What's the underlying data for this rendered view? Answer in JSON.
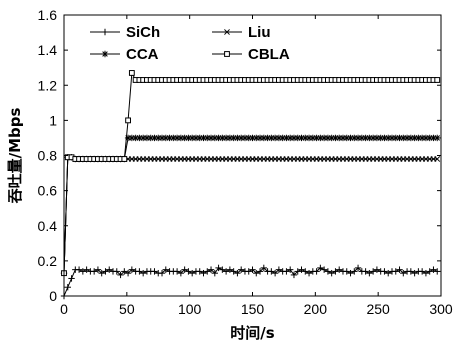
{
  "chart_data": {
    "type": "line",
    "xlabel": "时间/s",
    "ylabel": "吞吐量/Mbps",
    "xlim": [
      0,
      300
    ],
    "ylim": [
      0,
      1.6
    ],
    "xticks": [
      "0",
      "50",
      "100",
      "150",
      "200",
      "250",
      "300"
    ],
    "yticks": [
      "0",
      "0.2",
      "0.4",
      "0.6",
      "0.8",
      "1",
      "1.2",
      "1.4",
      "1.6"
    ],
    "grid": false,
    "legend": {
      "placement": "top-left",
      "columns": 2
    },
    "series": [
      {
        "name": "SiCh",
        "marker": "plus",
        "x": [
          0,
          3,
          6,
          9,
          12,
          15,
          18,
          21,
          24,
          27,
          30,
          33,
          36,
          39,
          42,
          45,
          48,
          51,
          54,
          57,
          60,
          63,
          66,
          69,
          72,
          75,
          78,
          81,
          84,
          87,
          90,
          93,
          96,
          99,
          102,
          105,
          108,
          111,
          114,
          117,
          120,
          123,
          126,
          129,
          132,
          135,
          138,
          141,
          144,
          147,
          150,
          153,
          156,
          159,
          162,
          165,
          168,
          171,
          174,
          177,
          180,
          183,
          186,
          189,
          192,
          195,
          198,
          201,
          204,
          207,
          210,
          213,
          216,
          219,
          222,
          225,
          228,
          231,
          234,
          237,
          240,
          243,
          246,
          249,
          252,
          255,
          258,
          261,
          264,
          267,
          270,
          273,
          276,
          279,
          282,
          285,
          288,
          291,
          294,
          297
        ],
        "y": [
          0.0,
          0.05,
          0.1,
          0.15,
          0.15,
          0.14,
          0.15,
          0.14,
          0.14,
          0.15,
          0.13,
          0.14,
          0.15,
          0.14,
          0.14,
          0.12,
          0.14,
          0.13,
          0.15,
          0.14,
          0.14,
          0.13,
          0.14,
          0.14,
          0.14,
          0.13,
          0.13,
          0.15,
          0.14,
          0.14,
          0.14,
          0.13,
          0.15,
          0.14,
          0.13,
          0.14,
          0.14,
          0.13,
          0.14,
          0.15,
          0.13,
          0.16,
          0.15,
          0.14,
          0.15,
          0.14,
          0.13,
          0.15,
          0.14,
          0.14,
          0.15,
          0.13,
          0.14,
          0.16,
          0.14,
          0.14,
          0.13,
          0.15,
          0.14,
          0.14,
          0.15,
          0.12,
          0.14,
          0.15,
          0.14,
          0.13,
          0.14,
          0.14,
          0.16,
          0.15,
          0.14,
          0.13,
          0.14,
          0.15,
          0.14,
          0.14,
          0.13,
          0.14,
          0.16,
          0.14,
          0.14,
          0.13,
          0.14,
          0.15,
          0.14,
          0.14,
          0.13,
          0.14,
          0.14,
          0.15,
          0.13,
          0.14,
          0.14,
          0.13,
          0.14,
          0.14,
          0.13,
          0.14,
          0.15,
          0.14
        ]
      },
      {
        "name": "Liu",
        "marker": "x",
        "x": [
          0,
          3,
          6,
          9,
          12,
          15,
          18,
          21,
          24,
          27,
          30,
          33,
          36,
          39,
          42,
          45,
          48,
          51,
          54,
          57,
          60,
          63,
          66,
          69,
          72,
          75,
          78,
          81,
          84,
          87,
          90,
          93,
          96,
          99,
          102,
          105,
          108,
          111,
          114,
          117,
          120,
          123,
          126,
          129,
          132,
          135,
          138,
          141,
          144,
          147,
          150,
          153,
          156,
          159,
          162,
          165,
          168,
          171,
          174,
          177,
          180,
          183,
          186,
          189,
          192,
          195,
          198,
          201,
          204,
          207,
          210,
          213,
          216,
          219,
          222,
          225,
          228,
          231,
          234,
          237,
          240,
          243,
          246,
          249,
          252,
          255,
          258,
          261,
          264,
          267,
          270,
          273,
          276,
          279,
          282,
          285,
          288,
          291,
          294,
          297
        ],
        "y": [
          0.13,
          0.79,
          0.79,
          0.78,
          0.78,
          0.78,
          0.78,
          0.78,
          0.78,
          0.78,
          0.78,
          0.78,
          0.78,
          0.78,
          0.78,
          0.78,
          0.78,
          0.78,
          0.78,
          0.78,
          0.78,
          0.78,
          0.78,
          0.78,
          0.78,
          0.78,
          0.78,
          0.78,
          0.78,
          0.78,
          0.78,
          0.78,
          0.78,
          0.78,
          0.78,
          0.78,
          0.78,
          0.78,
          0.78,
          0.78,
          0.78,
          0.78,
          0.78,
          0.78,
          0.78,
          0.78,
          0.78,
          0.78,
          0.78,
          0.78,
          0.78,
          0.78,
          0.78,
          0.78,
          0.78,
          0.78,
          0.78,
          0.78,
          0.78,
          0.78,
          0.78,
          0.78,
          0.78,
          0.78,
          0.78,
          0.78,
          0.78,
          0.78,
          0.78,
          0.78,
          0.78,
          0.78,
          0.78,
          0.78,
          0.78,
          0.78,
          0.78,
          0.78,
          0.78,
          0.78,
          0.78,
          0.78,
          0.78,
          0.78,
          0.78,
          0.78,
          0.78,
          0.78,
          0.78,
          0.78,
          0.78,
          0.78,
          0.78,
          0.78,
          0.78,
          0.78,
          0.78,
          0.78,
          0.78,
          0.78
        ]
      },
      {
        "name": "CCA",
        "marker": "asterisk",
        "x": [
          0,
          3,
          6,
          9,
          12,
          15,
          18,
          21,
          24,
          27,
          30,
          33,
          36,
          39,
          42,
          45,
          48,
          51,
          54,
          57,
          60,
          63,
          66,
          69,
          72,
          75,
          78,
          81,
          84,
          87,
          90,
          93,
          96,
          99,
          102,
          105,
          108,
          111,
          114,
          117,
          120,
          123,
          126,
          129,
          132,
          135,
          138,
          141,
          144,
          147,
          150,
          153,
          156,
          159,
          162,
          165,
          168,
          171,
          174,
          177,
          180,
          183,
          186,
          189,
          192,
          195,
          198,
          201,
          204,
          207,
          210,
          213,
          216,
          219,
          222,
          225,
          228,
          231,
          234,
          237,
          240,
          243,
          246,
          249,
          252,
          255,
          258,
          261,
          264,
          267,
          270,
          273,
          276,
          279,
          282,
          285,
          288,
          291,
          294,
          297
        ],
        "y": [
          0.13,
          0.79,
          0.79,
          0.78,
          0.78,
          0.78,
          0.78,
          0.78,
          0.78,
          0.78,
          0.78,
          0.78,
          0.78,
          0.78,
          0.78,
          0.78,
          0.78,
          0.9,
          0.9,
          0.9,
          0.9,
          0.9,
          0.9,
          0.9,
          0.9,
          0.9,
          0.9,
          0.9,
          0.9,
          0.9,
          0.9,
          0.9,
          0.9,
          0.9,
          0.9,
          0.9,
          0.9,
          0.9,
          0.9,
          0.9,
          0.9,
          0.9,
          0.9,
          0.9,
          0.9,
          0.9,
          0.9,
          0.9,
          0.9,
          0.9,
          0.9,
          0.9,
          0.9,
          0.9,
          0.9,
          0.9,
          0.9,
          0.9,
          0.9,
          0.9,
          0.9,
          0.9,
          0.9,
          0.9,
          0.9,
          0.9,
          0.9,
          0.9,
          0.9,
          0.9,
          0.9,
          0.9,
          0.9,
          0.9,
          0.9,
          0.9,
          0.9,
          0.9,
          0.9,
          0.9,
          0.9,
          0.9,
          0.9,
          0.9,
          0.9,
          0.9,
          0.9,
          0.9,
          0.9,
          0.9,
          0.9,
          0.9,
          0.9,
          0.9,
          0.9,
          0.9,
          0.9,
          0.9,
          0.9,
          0.9
        ]
      },
      {
        "name": "CBLA",
        "marker": "square",
        "x": [
          0,
          3,
          6,
          9,
          12,
          15,
          18,
          21,
          24,
          27,
          30,
          33,
          36,
          39,
          42,
          45,
          48,
          51,
          54,
          57,
          60,
          63,
          66,
          69,
          72,
          75,
          78,
          81,
          84,
          87,
          90,
          93,
          96,
          99,
          102,
          105,
          108,
          111,
          114,
          117,
          120,
          123,
          126,
          129,
          132,
          135,
          138,
          141,
          144,
          147,
          150,
          153,
          156,
          159,
          162,
          165,
          168,
          171,
          174,
          177,
          180,
          183,
          186,
          189,
          192,
          195,
          198,
          201,
          204,
          207,
          210,
          213,
          216,
          219,
          222,
          225,
          228,
          231,
          234,
          237,
          240,
          243,
          246,
          249,
          252,
          255,
          258,
          261,
          264,
          267,
          270,
          273,
          276,
          279,
          282,
          285,
          288,
          291,
          294,
          297
        ],
        "y": [
          0.13,
          0.79,
          0.79,
          0.78,
          0.78,
          0.78,
          0.78,
          0.78,
          0.78,
          0.78,
          0.78,
          0.78,
          0.78,
          0.78,
          0.78,
          0.78,
          0.78,
          1.0,
          1.27,
          1.23,
          1.23,
          1.23,
          1.23,
          1.23,
          1.23,
          1.23,
          1.23,
          1.23,
          1.23,
          1.23,
          1.23,
          1.23,
          1.23,
          1.23,
          1.23,
          1.23,
          1.23,
          1.23,
          1.23,
          1.23,
          1.23,
          1.23,
          1.23,
          1.23,
          1.23,
          1.23,
          1.23,
          1.23,
          1.23,
          1.23,
          1.23,
          1.23,
          1.23,
          1.23,
          1.23,
          1.23,
          1.23,
          1.23,
          1.23,
          1.23,
          1.23,
          1.23,
          1.23,
          1.23,
          1.23,
          1.23,
          1.23,
          1.23,
          1.23,
          1.23,
          1.23,
          1.23,
          1.23,
          1.23,
          1.23,
          1.23,
          1.23,
          1.23,
          1.23,
          1.23,
          1.23,
          1.23,
          1.23,
          1.23,
          1.23,
          1.23,
          1.23,
          1.23,
          1.23,
          1.23,
          1.23,
          1.23,
          1.23,
          1.23,
          1.23,
          1.23,
          1.23,
          1.23,
          1.23,
          1.23
        ]
      }
    ]
  }
}
